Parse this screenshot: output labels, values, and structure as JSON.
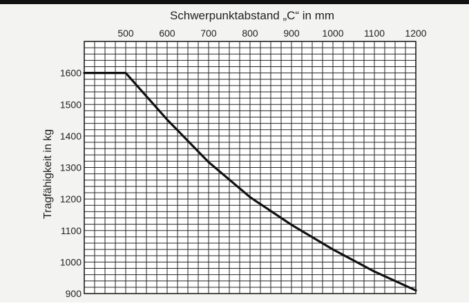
{
  "chart_data": {
    "type": "line",
    "title": "",
    "xlabel": "Schwerpunktabstand „C“ in mm",
    "ylabel": "Tragfähigkeit in kg",
    "xlim": [
      400,
      1200
    ],
    "ylim": [
      900,
      1700
    ],
    "x_ticks": [
      500,
      600,
      700,
      800,
      900,
      1000,
      1100,
      1200
    ],
    "y_ticks": [
      900,
      1000,
      1100,
      1200,
      1300,
      1400,
      1500,
      1600
    ],
    "x_axis_position": "top",
    "grid": true,
    "series": [
      {
        "x": [
          400,
          500,
          600,
          700,
          800,
          900,
          1000,
          1100,
          1200
        ],
        "y": [
          1600,
          1600,
          1452,
          1317,
          1206,
          1118,
          1040,
          970,
          910
        ],
        "color": "#111111"
      }
    ]
  }
}
